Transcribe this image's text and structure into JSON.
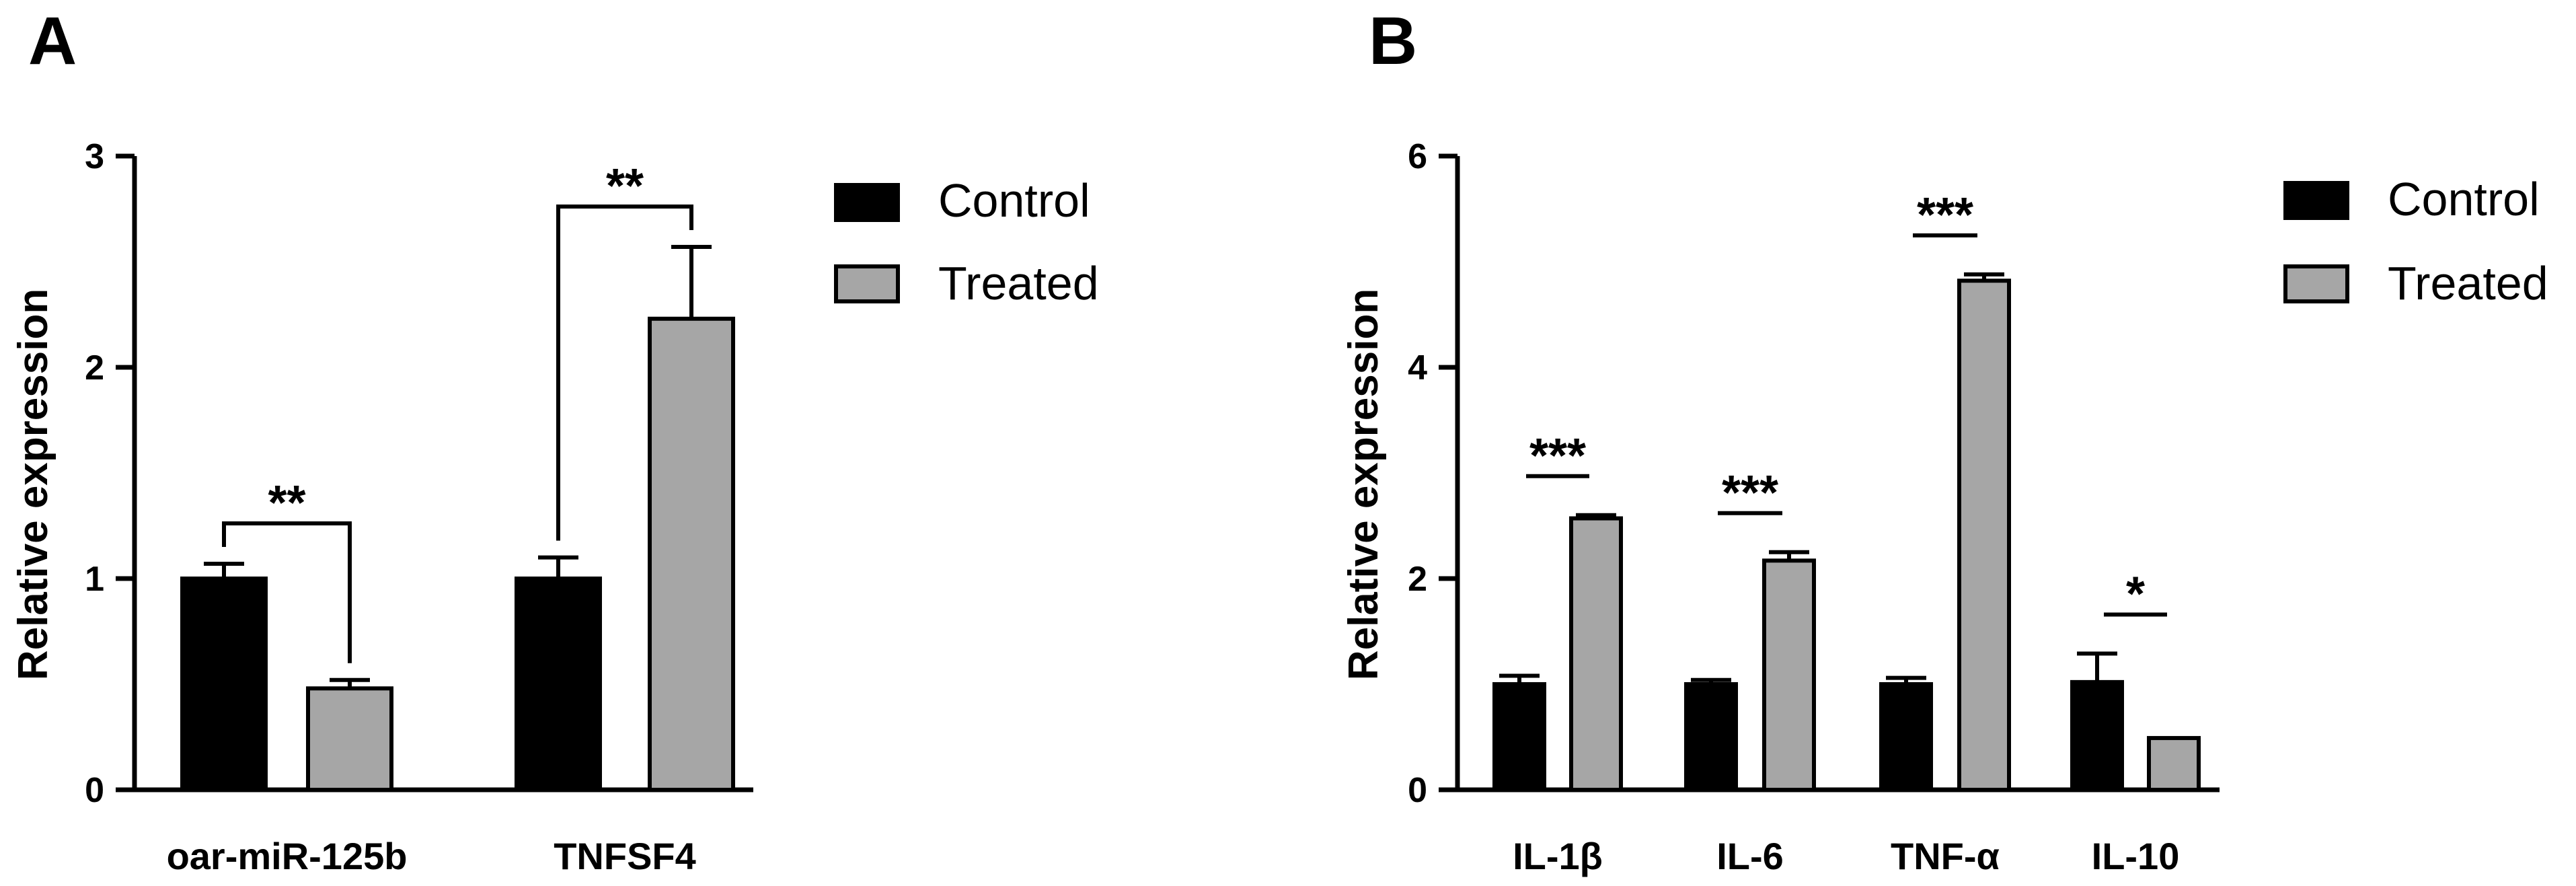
{
  "panels": [
    {
      "letter": "A",
      "chart_data": {
        "type": "bar",
        "categories": [
          "oar-miR-125b",
          "TNFSF4"
        ],
        "series": [
          {
            "name": "Control",
            "values": [
              1.0,
              1.0
            ],
            "errors": [
              0.07,
              0.1
            ],
            "color": "#000000"
          },
          {
            "name": "Treated",
            "values": [
              0.48,
              2.23
            ],
            "errors": [
              0.04,
              0.34
            ],
            "color": "#a6a6a6"
          }
        ],
        "ylabel": "Relative expression",
        "ylim": [
          0,
          3
        ],
        "yticks": [
          "0",
          "1",
          "2",
          "3"
        ],
        "significance": [
          "**",
          "**"
        ],
        "bracket_style": "bracket",
        "legend": [
          "Control",
          "Treated"
        ],
        "legend_position": "right",
        "grid": false
      }
    },
    {
      "letter": "B",
      "chart_data": {
        "type": "bar",
        "categories": [
          "IL-1β",
          "IL-6",
          "TNF-α",
          "IL-10"
        ],
        "series": [
          {
            "name": "Control",
            "values": [
              1.0,
              1.0,
              1.0,
              1.02
            ],
            "errors": [
              0.08,
              0.04,
              0.06,
              0.27
            ],
            "color": "#000000"
          },
          {
            "name": "Treated",
            "values": [
              2.57,
              2.17,
              4.82,
              0.49
            ],
            "errors": [
              0.03,
              0.08,
              0.06,
              0.0
            ],
            "color": "#a6a6a6"
          }
        ],
        "ylabel": "Relative expression",
        "ylim": [
          0,
          6
        ],
        "yticks": [
          "0",
          "2",
          "4",
          "6"
        ],
        "significance": [
          "***",
          "***",
          "***",
          "*"
        ],
        "bracket_style": "line",
        "legend": [
          "Control",
          "Treated"
        ],
        "legend_position": "right",
        "grid": false
      }
    }
  ]
}
